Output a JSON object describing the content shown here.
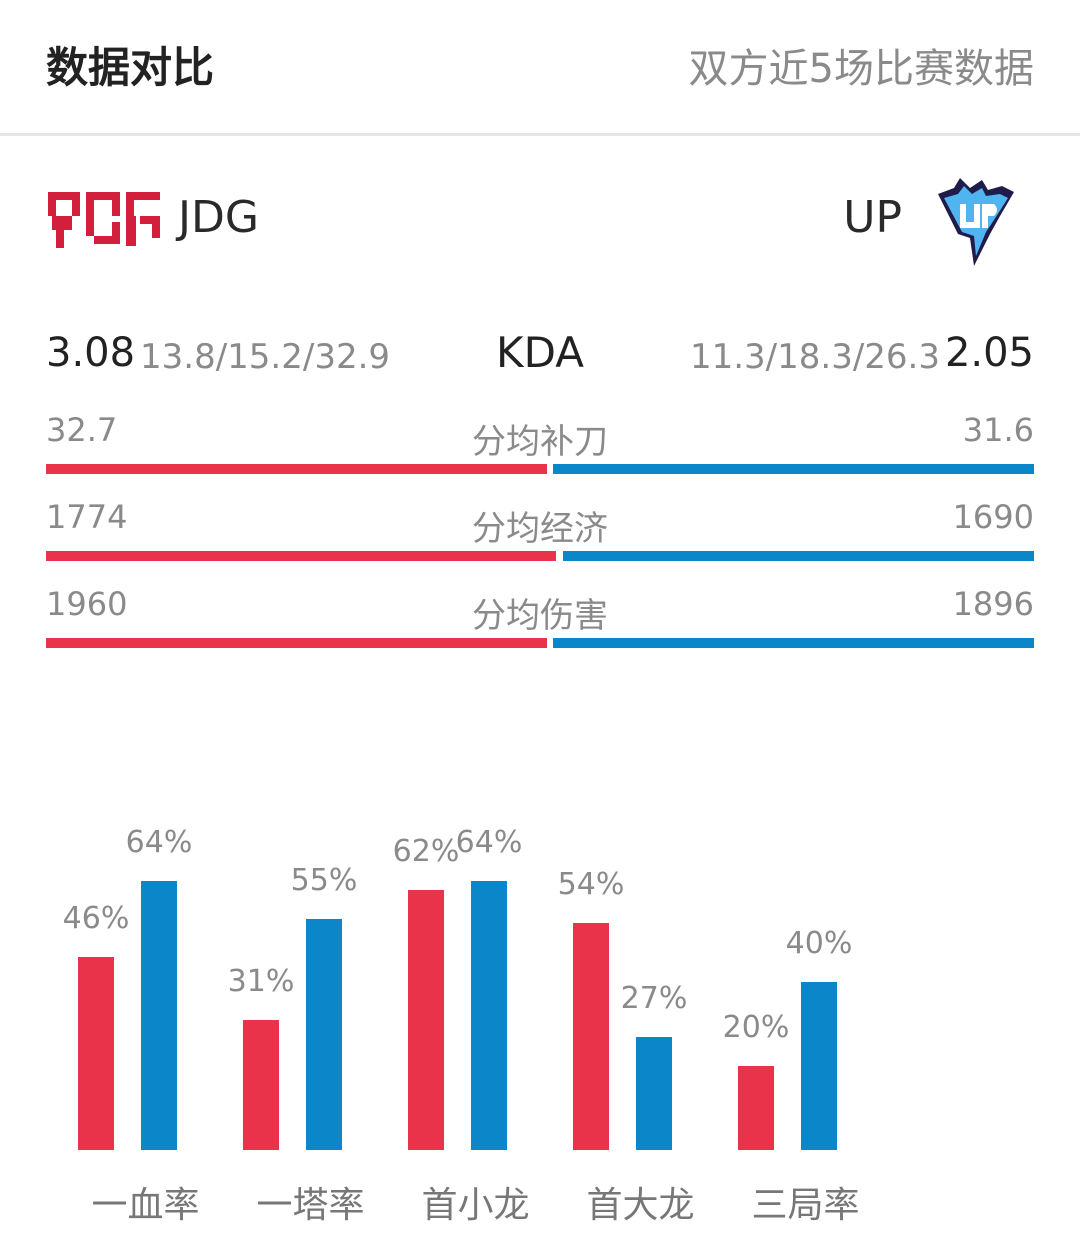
{
  "header": {
    "title": "数据对比",
    "subtitle": "双方近5场比赛数据"
  },
  "teams": {
    "left": {
      "name": "JDG",
      "logo_text": "JDG",
      "color": "#e8334a"
    },
    "right": {
      "name": "UP",
      "logo_text": "UP",
      "color": "#0a86c9"
    }
  },
  "kda": {
    "label": "KDA",
    "left_value": "3.08",
    "left_split": "13.8/15.2/32.9",
    "right_split": "11.3/18.3/26.3",
    "right_value": "2.05"
  },
  "stats": [
    {
      "label": "分均补刀",
      "left": "32.7",
      "right": "31.6"
    },
    {
      "label": "分均经济",
      "left": "1774",
      "right": "1690"
    },
    {
      "label": "分均伤害",
      "left": "1960",
      "right": "1896"
    }
  ],
  "chart_data": {
    "type": "bar",
    "categories": [
      "一血率",
      "一塔率",
      "首小龙",
      "首大龙",
      "三局率"
    ],
    "series": [
      {
        "values": [
          46,
          31,
          62,
          54,
          20
        ],
        "labels": [
          "46%",
          "31%",
          "62%",
          "54%",
          "20%"
        ],
        "color": "#e8334a"
      },
      {
        "values": [
          64,
          55,
          64,
          27,
          40
        ],
        "labels": [
          "64%",
          "55%",
          "64%",
          "27%",
          "40%"
        ],
        "color": "#0a86c9"
      }
    ],
    "ylim": [
      0,
      100
    ]
  }
}
